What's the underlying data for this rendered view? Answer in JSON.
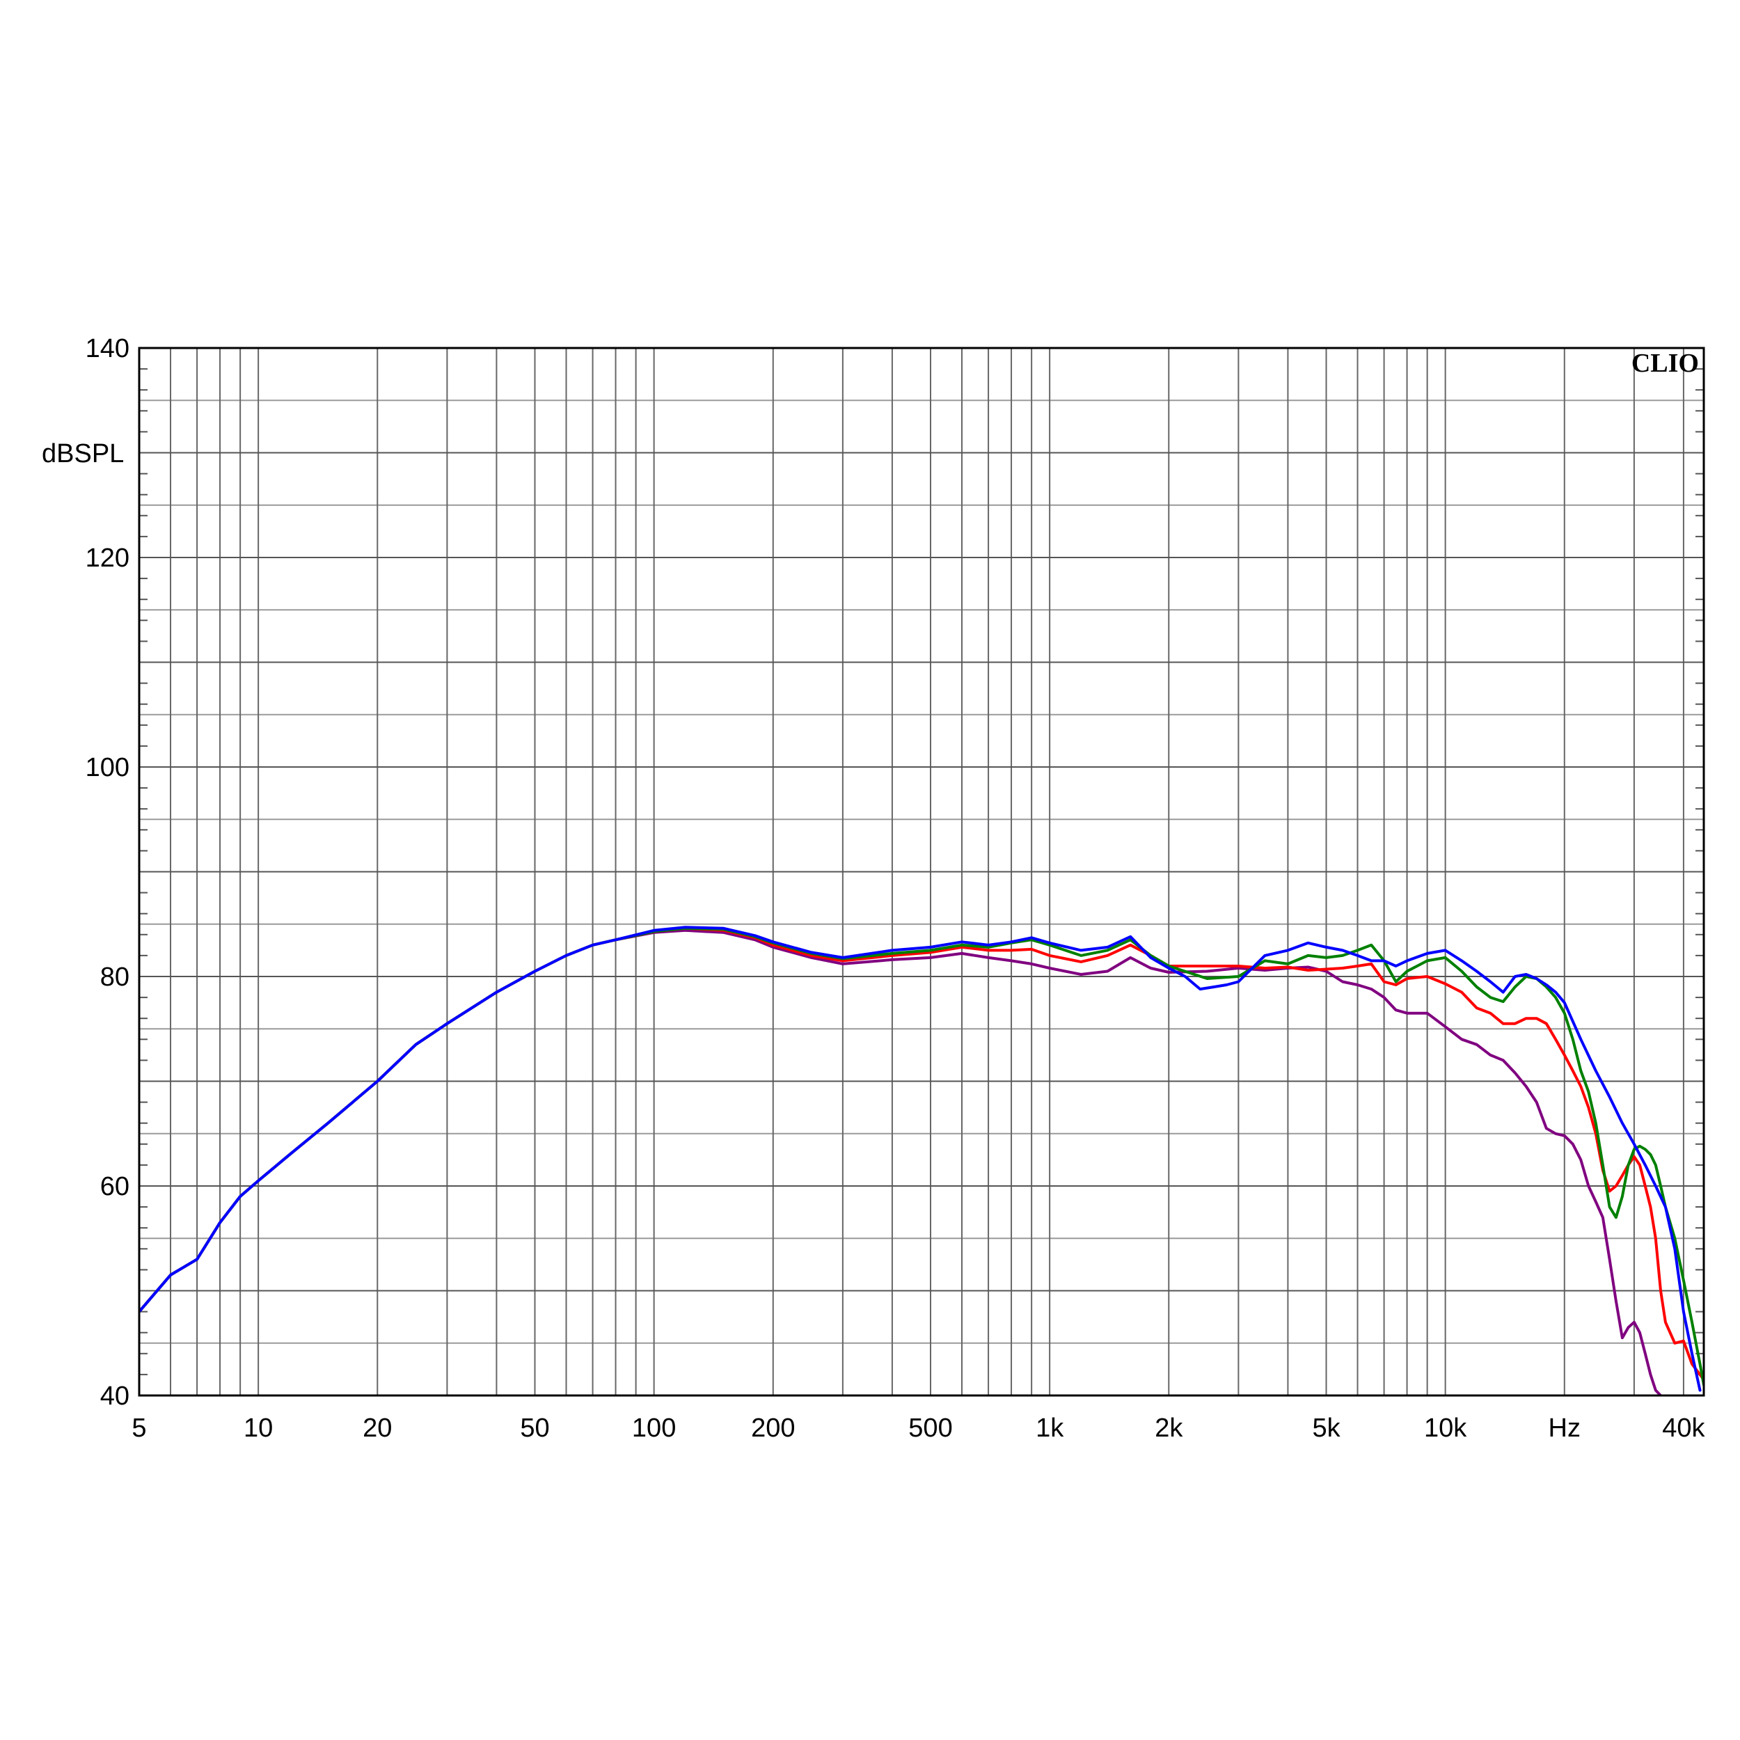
{
  "chart_data": {
    "type": "line",
    "brand": "CLIO",
    "ylabel": "dBSPL",
    "xunit": "Hz",
    "xscale": "log",
    "xlim": [
      5,
      45000
    ],
    "ylim": [
      40,
      140
    ],
    "grid": true,
    "x_tick_labels": [
      {
        "value": 5,
        "label": "5"
      },
      {
        "value": 10,
        "label": "10"
      },
      {
        "value": 20,
        "label": "20"
      },
      {
        "value": 50,
        "label": "50"
      },
      {
        "value": 100,
        "label": "100"
      },
      {
        "value": 200,
        "label": "200"
      },
      {
        "value": 500,
        "label": "500"
      },
      {
        "value": 1000,
        "label": "1k"
      },
      {
        "value": 2000,
        "label": "2k"
      },
      {
        "value": 5000,
        "label": "5k"
      },
      {
        "value": 10000,
        "label": "10k"
      },
      {
        "value": 20000,
        "label": "Hz"
      },
      {
        "value": 40000,
        "label": "40k"
      }
    ],
    "y_tick_labels": [
      {
        "value": 140,
        "label": "140"
      },
      {
        "value": 120,
        "label": "120"
      },
      {
        "value": 100,
        "label": "100"
      },
      {
        "value": 80,
        "label": "80"
      },
      {
        "value": 60,
        "label": "60"
      },
      {
        "value": 40,
        "label": "40"
      }
    ],
    "series": [
      {
        "color": "#800080",
        "x": [
          5,
          6,
          7,
          8,
          9,
          10,
          12,
          15,
          20,
          25,
          30,
          40,
          50,
          60,
          70,
          80,
          100,
          120,
          150,
          180,
          200,
          250,
          300,
          400,
          500,
          600,
          700,
          800,
          900,
          1000,
          1200,
          1400,
          1600,
          1800,
          2000,
          2500,
          3000,
          3500,
          4000,
          4500,
          5000,
          5500,
          6000,
          6500,
          7000,
          7500,
          8000,
          9000,
          10000,
          11000,
          12000,
          13000,
          14000,
          15000,
          16000,
          17000,
          18000,
          19000,
          20000,
          21000,
          22000,
          23000,
          24000,
          25000,
          26000,
          27000,
          28000,
          29000,
          30000,
          31000,
          32000,
          33000,
          34000,
          35000
        ],
        "y": [
          48,
          51.5,
          53,
          56.5,
          59,
          60.5,
          63,
          66,
          70,
          73.5,
          75.5,
          78.5,
          80.5,
          82,
          83,
          83.5,
          84.2,
          84.4,
          84.2,
          83.5,
          82.8,
          81.8,
          81.2,
          81.6,
          81.8,
          82.2,
          81.8,
          81.5,
          81.2,
          80.8,
          80.2,
          80.5,
          81.8,
          80.8,
          80.4,
          80.5,
          80.8,
          80.6,
          80.8,
          80.9,
          80.5,
          79.5,
          79.2,
          78.8,
          78,
          76.8,
          76.5,
          76.5,
          75.2,
          74,
          73.5,
          72.5,
          72,
          70.8,
          69.5,
          68,
          65.5,
          65,
          64.8,
          64,
          62.5,
          60,
          58.5,
          57,
          53,
          49,
          45.5,
          46.5,
          47,
          46,
          44,
          42,
          40.5,
          40
        ]
      },
      {
        "color": "#ff0000",
        "x": [
          5,
          6,
          7,
          8,
          9,
          10,
          12,
          15,
          20,
          25,
          30,
          40,
          50,
          60,
          70,
          80,
          100,
          120,
          150,
          180,
          200,
          250,
          300,
          400,
          500,
          600,
          700,
          800,
          900,
          1000,
          1200,
          1400,
          1600,
          1800,
          2000,
          2500,
          3000,
          3500,
          4000,
          4500,
          5000,
          5500,
          6000,
          6500,
          7000,
          7500,
          8000,
          9000,
          10000,
          11000,
          12000,
          13000,
          14000,
          15000,
          16000,
          17000,
          18000,
          19000,
          20000,
          21000,
          22000,
          23000,
          24000,
          25000,
          26000,
          27000,
          28000,
          29000,
          30000,
          31000,
          32000,
          33000,
          34000,
          35000,
          36000,
          38000,
          40000,
          42000,
          44000,
          45000
        ],
        "y": [
          48,
          51.5,
          53,
          56.5,
          59,
          60.5,
          63,
          66,
          70,
          73.5,
          75.5,
          78.5,
          80.5,
          82,
          83,
          83.5,
          84.3,
          84.6,
          84.4,
          83.7,
          83,
          82,
          81.5,
          82,
          82.3,
          82.8,
          82.5,
          82.5,
          82.6,
          82,
          81.4,
          82,
          83,
          82,
          81,
          81,
          81,
          80.8,
          80.9,
          80.6,
          80.7,
          80.8,
          81,
          81.2,
          79.5,
          79.2,
          79.8,
          80,
          79.3,
          78.5,
          77,
          76.5,
          75.5,
          75.5,
          76,
          76,
          75.5,
          74,
          72.5,
          71,
          69.5,
          67.5,
          65,
          61.5,
          59.5,
          60,
          61,
          62,
          62.8,
          62,
          60,
          58,
          55,
          50,
          47,
          45,
          45.2,
          43,
          42,
          41.5
        ]
      },
      {
        "color": "#008000",
        "x": [
          5,
          6,
          7,
          8,
          9,
          10,
          12,
          15,
          20,
          25,
          30,
          40,
          50,
          60,
          70,
          80,
          100,
          120,
          150,
          180,
          200,
          250,
          300,
          400,
          500,
          600,
          700,
          800,
          900,
          1000,
          1200,
          1400,
          1600,
          1800,
          2000,
          2500,
          3000,
          3500,
          4000,
          4500,
          5000,
          5500,
          6000,
          6500,
          7000,
          7500,
          8000,
          9000,
          10000,
          11000,
          12000,
          13000,
          14000,
          15000,
          16000,
          17000,
          18000,
          19000,
          20000,
          21000,
          22000,
          23000,
          24000,
          25000,
          26000,
          27000,
          28000,
          29000,
          30000,
          31000,
          32000,
          33000,
          34000,
          35000,
          36000,
          38000,
          40000,
          42000,
          44000,
          45000
        ],
        "y": [
          48,
          51.5,
          53,
          56.5,
          59,
          60.5,
          63,
          66,
          70,
          73.5,
          75.5,
          78.5,
          80.5,
          82,
          83,
          83.5,
          84.3,
          84.6,
          84.5,
          83.8,
          83.2,
          82.2,
          81.7,
          82.2,
          82.5,
          83,
          82.8,
          83.2,
          83.5,
          83,
          82,
          82.5,
          83.5,
          82,
          81,
          79.8,
          80,
          81.5,
          81.2,
          82,
          81.8,
          82,
          82.5,
          83,
          81.5,
          79.5,
          80.5,
          81.5,
          81.8,
          80.5,
          79,
          78,
          77.6,
          79,
          80,
          79.8,
          79,
          78,
          76.5,
          74,
          71,
          69,
          66,
          62,
          58,
          57,
          59,
          62,
          63.5,
          63.8,
          63.5,
          63,
          62,
          60,
          58,
          55,
          51,
          47,
          43,
          41
        ]
      },
      {
        "color": "#0000ff",
        "x": [
          5,
          6,
          7,
          8,
          9,
          10,
          12,
          15,
          20,
          25,
          30,
          40,
          50,
          60,
          70,
          80,
          100,
          120,
          150,
          180,
          200,
          250,
          300,
          400,
          500,
          600,
          700,
          800,
          900,
          1000,
          1200,
          1400,
          1600,
          1800,
          2000,
          2200,
          2400,
          2600,
          2800,
          3000,
          3500,
          4000,
          4500,
          5000,
          5500,
          6000,
          6500,
          7000,
          7500,
          8000,
          9000,
          10000,
          11000,
          12000,
          13000,
          14000,
          15000,
          16000,
          17000,
          18000,
          19000,
          20000,
          22000,
          24000,
          26000,
          28000,
          30000,
          32000,
          34000,
          36000,
          38000,
          40000,
          42000,
          44000
        ],
        "y": [
          48,
          51.5,
          53,
          56.5,
          59,
          60.5,
          63,
          66,
          70,
          73.5,
          75.5,
          78.5,
          80.5,
          82,
          83,
          83.5,
          84.4,
          84.7,
          84.6,
          83.9,
          83.3,
          82.3,
          81.8,
          82.5,
          82.8,
          83.3,
          83,
          83.3,
          83.7,
          83.2,
          82.5,
          82.8,
          83.8,
          81.8,
          80.8,
          80,
          78.8,
          79,
          79.2,
          79.5,
          82,
          82.5,
          83.2,
          82.8,
          82.5,
          82,
          81.5,
          81.5,
          81,
          81.5,
          82.2,
          82.5,
          81.5,
          80.5,
          79.5,
          78.5,
          80,
          80.2,
          79.8,
          79.2,
          78.5,
          77.5,
          74,
          71,
          68.5,
          66,
          64,
          62,
          60,
          58,
          54,
          48,
          44,
          40.5
        ]
      }
    ]
  }
}
